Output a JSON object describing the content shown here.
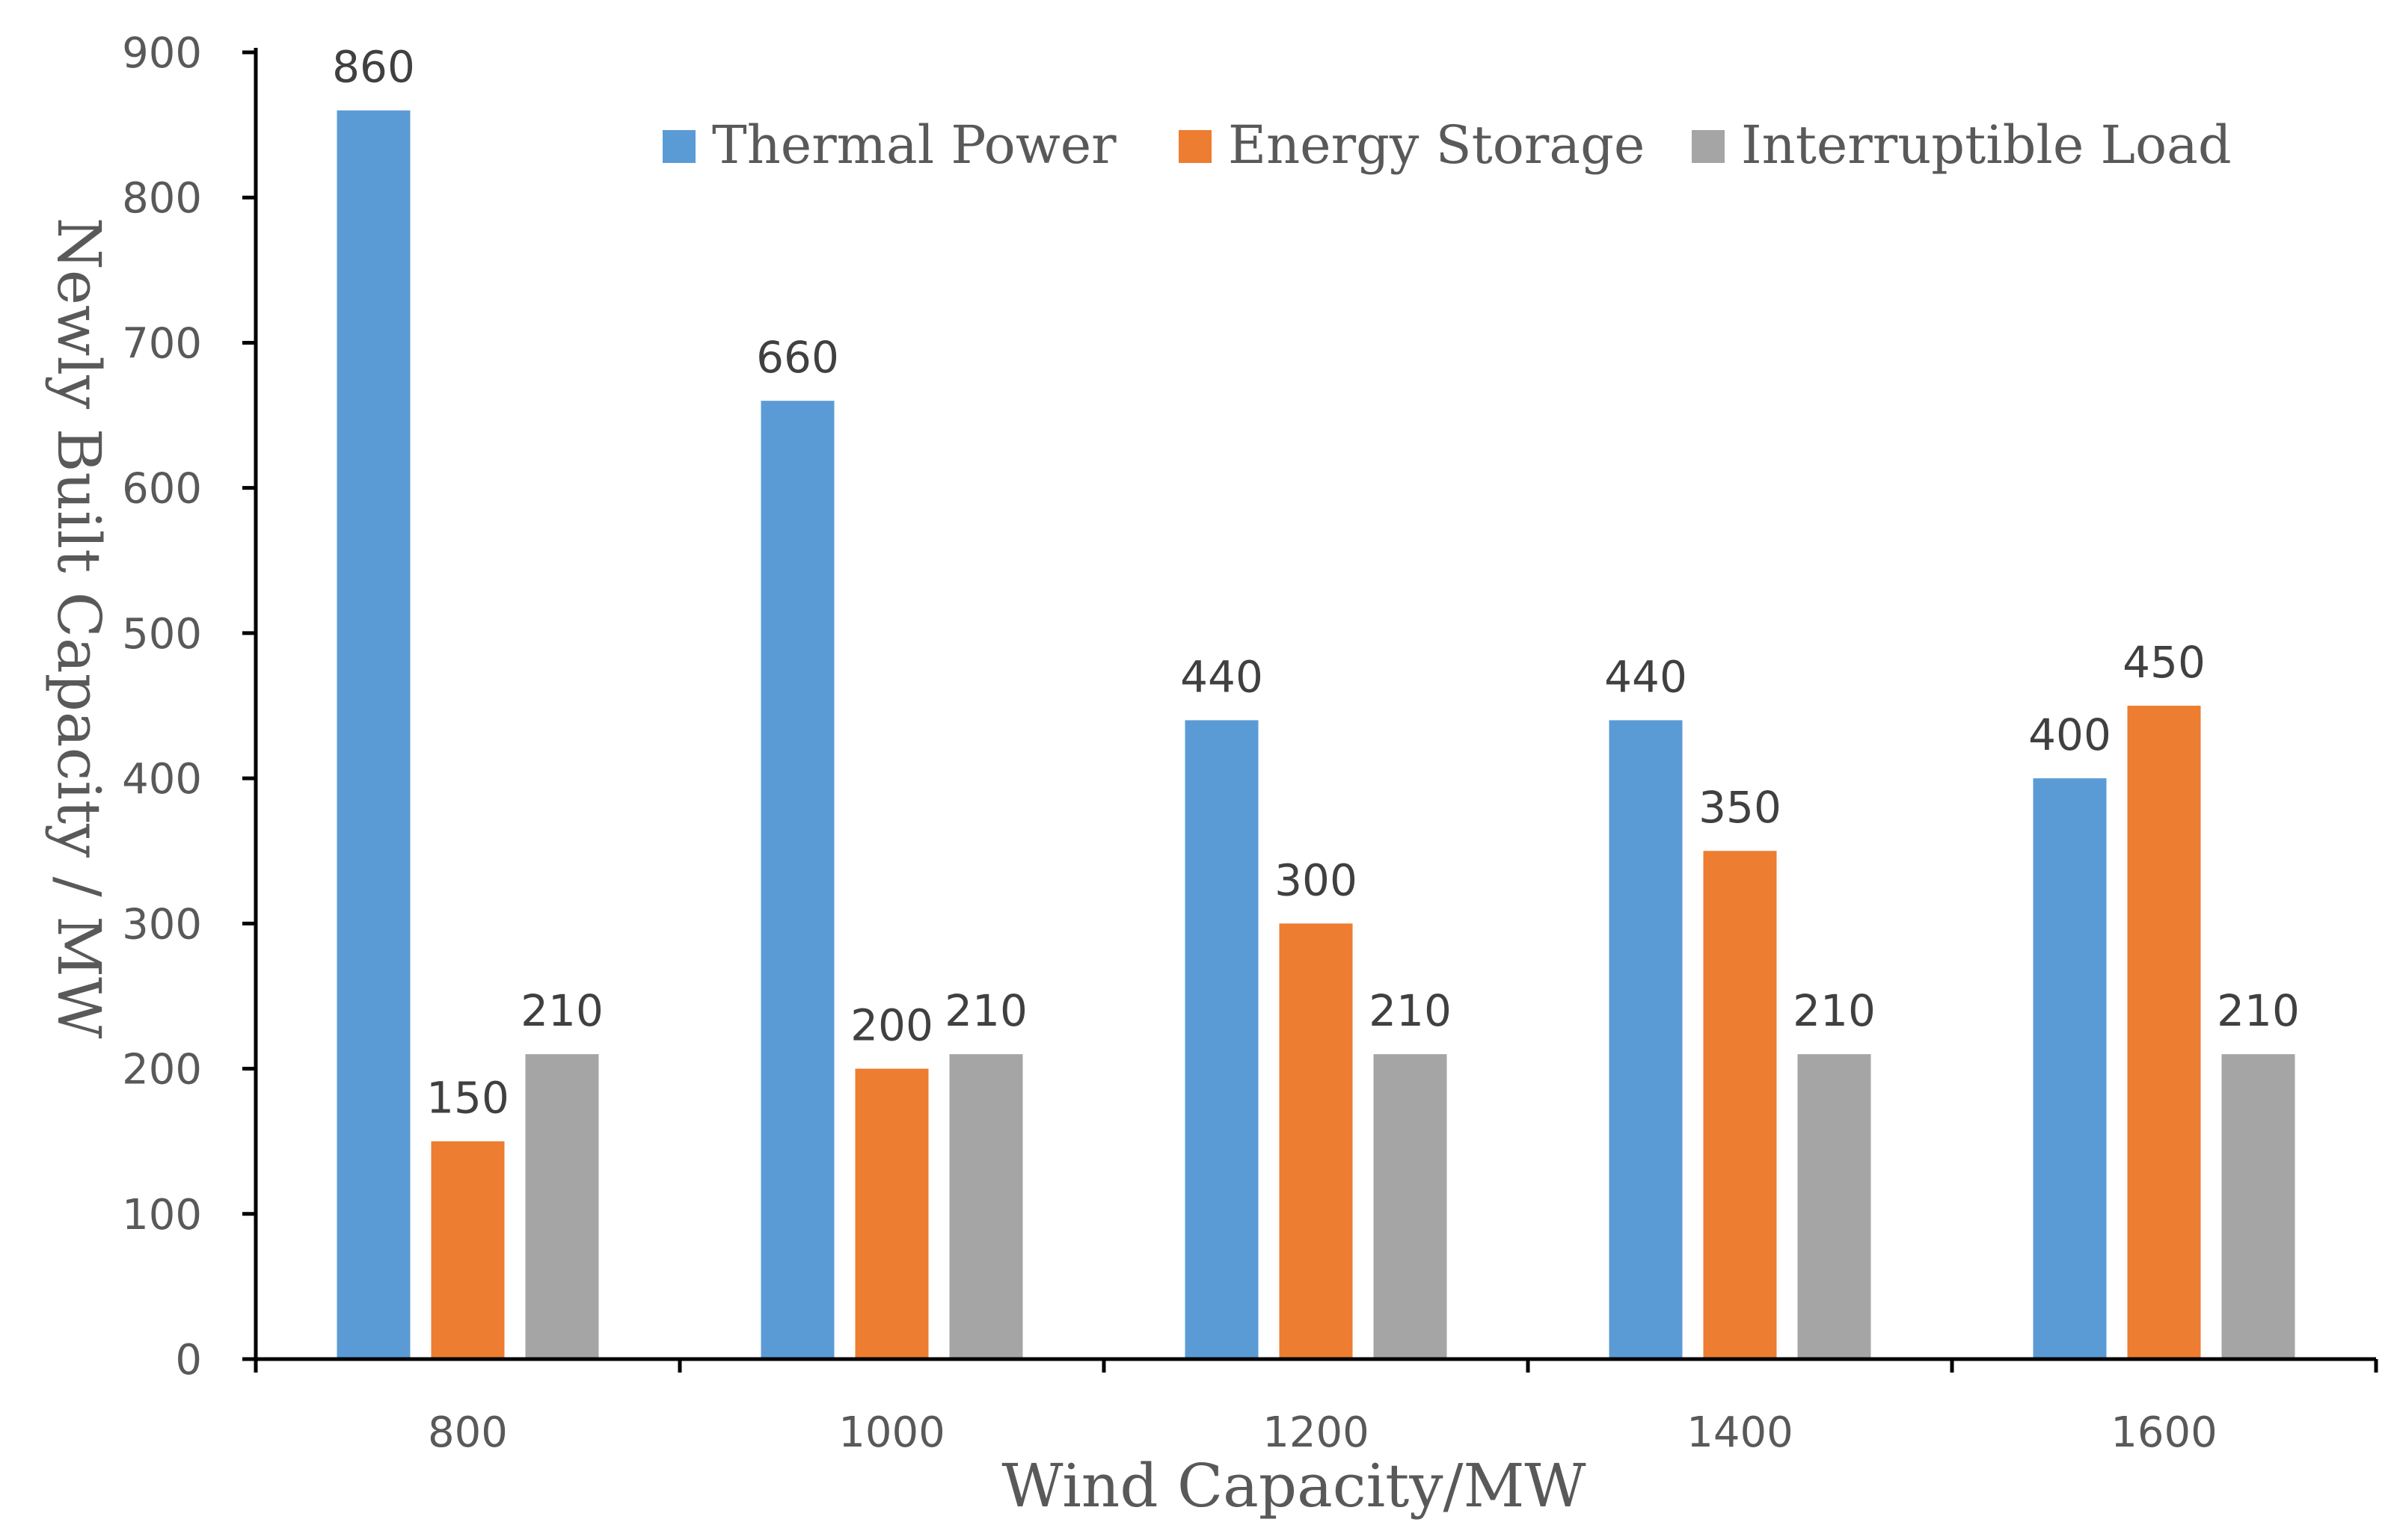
{
  "chart_data": {
    "type": "bar",
    "title": "",
    "xlabel": "Wind Capacity/MW",
    "ylabel": "Newly Built Capacity / MW",
    "categories": [
      "800",
      "1000",
      "1200",
      "1400",
      "1600"
    ],
    "ylim": [
      0,
      900
    ],
    "yticks": [
      0,
      100,
      200,
      300,
      400,
      500,
      600,
      700,
      800,
      900
    ],
    "grid": false,
    "legend_position": "top-right",
    "series": [
      {
        "name": "Thermal Power",
        "color": "#5B9BD5",
        "values": [
          860,
          660,
          440,
          440,
          400
        ]
      },
      {
        "name": "Energy Storage",
        "color": "#ED7D31",
        "values": [
          150,
          200,
          300,
          350,
          450
        ]
      },
      {
        "name": "Interruptible Load",
        "color": "#A5A5A5",
        "values": [
          210,
          210,
          210,
          210,
          210
        ]
      }
    ]
  }
}
